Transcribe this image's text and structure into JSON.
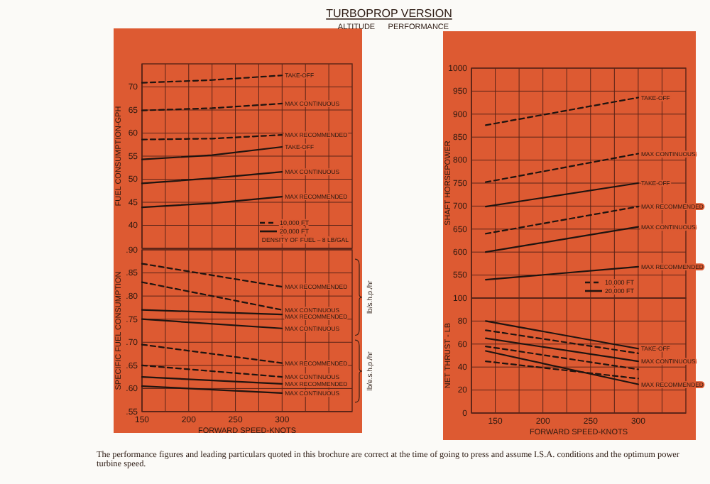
{
  "chart_data": [
    {
      "type": "line",
      "ylabel": "FUEL CONSUMPTION-GPH",
      "xlim": [
        150,
        375
      ],
      "xticks": [
        150,
        {
          "value": 175,
          "label": null
        },
        200,
        {
          "value": 225,
          "label": null
        },
        250,
        {
          "value": 275,
          "label": null
        },
        300,
        {
          "value": 325,
          "label": null
        },
        {
          "value": 350,
          "label": null
        }
      ],
      "ylim": [
        35,
        75
      ],
      "yticks": [
        {
          "value": 35,
          "label": null
        },
        40,
        45,
        50,
        55,
        60,
        65,
        70
      ],
      "grid": true,
      "tick_labels": "y",
      "annotations": [
        "10,000 FT",
        "20,000 FT",
        "DENSITY OF FUEL – 8 LB/GAL"
      ],
      "series": [
        {
          "name": "TAKE-OFF",
          "color": "#1e1410",
          "line_style": "dashed",
          "x": [
            150,
            225,
            300
          ],
          "values": [
            70.9,
            71.5,
            72.5
          ]
        },
        {
          "name": "MAX CONTINUOUS",
          "color": "#1e1410",
          "line_style": "dashed",
          "x": [
            150,
            225,
            300
          ],
          "values": [
            64.9,
            65.4,
            66.4
          ]
        },
        {
          "name": "MAX RECOMMENDED",
          "color": "#1e1410",
          "line_style": "dashed",
          "x": [
            150,
            225,
            300
          ],
          "values": [
            58.6,
            58.8,
            59.6
          ]
        },
        {
          "name": "TAKE-OFF",
          "color": "#1e1410",
          "line_style": "solid",
          "x": [
            150,
            225,
            300
          ],
          "values": [
            54.3,
            55.2,
            57.0
          ]
        },
        {
          "name": "MAX CONTINUOUS",
          "color": "#1e1410",
          "line_style": "solid",
          "x": [
            150,
            225,
            300
          ],
          "values": [
            49.1,
            50.2,
            51.6
          ]
        },
        {
          "name": "MAX RECOMMENDED",
          "color": "#1e1410",
          "line_style": "solid",
          "x": [
            150,
            225,
            300
          ],
          "values": [
            43.9,
            44.8,
            46.2
          ]
        }
      ]
    },
    {
      "type": "line",
      "ylabel": "SPECIFIC FUEL CONSUMPTION",
      "xlabel": "FORWARD SPEED-KNOTS",
      "xlim": [
        150,
        375
      ],
      "xticks": [
        150,
        {
          "value": 175,
          "label": null
        },
        200,
        {
          "value": 225,
          "label": null
        },
        250,
        {
          "value": 275,
          "label": null
        },
        300,
        {
          "value": 325,
          "label": null
        },
        {
          "value": 350,
          "label": null
        }
      ],
      "ylim": [
        0.55,
        0.9
      ],
      "yticks": [
        {
          "value": 0.55,
          "label": ".55"
        },
        {
          "value": 0.6,
          "label": ".60"
        },
        {
          "value": 0.65,
          "label": ".65"
        },
        {
          "value": 0.7,
          "label": ".70"
        },
        {
          "value": 0.75,
          "label": ".75"
        },
        {
          "value": 0.8,
          "label": ".80"
        },
        {
          "value": 0.85,
          "label": ".85"
        },
        {
          "value": 0.9,
          "label": ".90"
        }
      ],
      "grid": true,
      "annotations": [
        "lb/s.h.p./hr",
        "lb/e.s.h.p./hr"
      ],
      "series": [
        {
          "name": "MAX RECOMMENDED",
          "color": "#1e1410",
          "line_style": "dashed",
          "x": [
            150,
            300
          ],
          "values": [
            0.87,
            0.82
          ]
        },
        {
          "name": "MAX CONTINUOUS",
          "color": "#1e1410",
          "line_style": "dashed",
          "x": [
            150,
            300
          ],
          "values": [
            0.83,
            0.77
          ]
        },
        {
          "name": "MAX RECOMMENDED",
          "color": "#1e1410",
          "line_style": "solid",
          "x": [
            150,
            300
          ],
          "values": [
            0.77,
            0.76
          ]
        },
        {
          "name": "MAX CONTINUOUS",
          "color": "#1e1410",
          "line_style": "solid",
          "x": [
            150,
            300
          ],
          "values": [
            0.75,
            0.73
          ]
        },
        {
          "name": "MAX RECOMMENDED",
          "color": "#1e1410",
          "line_style": "dashed",
          "x": [
            150,
            300
          ],
          "values": [
            0.695,
            0.655
          ]
        },
        {
          "name": "MAX CONTINUOUS",
          "color": "#1e1410",
          "line_style": "dashed",
          "x": [
            150,
            300
          ],
          "values": [
            0.65,
            0.625
          ]
        },
        {
          "name": "MAX RECOMMENDED",
          "color": "#1e1410",
          "line_style": "solid",
          "x": [
            150,
            300
          ],
          "values": [
            0.625,
            0.61
          ]
        },
        {
          "name": "MAX CONTINUOUS",
          "color": "#1e1410",
          "line_style": "solid",
          "x": [
            150,
            300
          ],
          "values": [
            0.605,
            0.59
          ]
        }
      ]
    },
    {
      "type": "line",
      "title": "TURBOPROP VERSION",
      "subtitle": "ALTITUDE      PERFORMANCE",
      "ylabel": "SHAFT HORSEPOWER",
      "xlim": [
        125,
        350
      ],
      "xticks": [
        {
          "value": 125,
          "label": null
        },
        150,
        {
          "value": 175,
          "label": null
        },
        200,
        {
          "value": 225,
          "label": null
        },
        250,
        {
          "value": 275,
          "label": null
        },
        300,
        {
          "value": 325,
          "label": null
        }
      ],
      "ylim": [
        500,
        1000
      ],
      "yticks": [
        550,
        600,
        650,
        700,
        750,
        800,
        850,
        900,
        950,
        1000
      ],
      "grid": true,
      "tick_labels": "y",
      "annotations": [
        "10,000 FT",
        "20,000 FT"
      ],
      "series": [
        {
          "name": "TAKE-OFF",
          "color": "#1e1410",
          "line_style": "dashed",
          "x": [
            140,
            300
          ],
          "values": [
            876,
            936
          ]
        },
        {
          "name": "MAX CONTINUOUS",
          "color": "#1e1410",
          "line_style": "dashed",
          "x": [
            140,
            300
          ],
          "values": [
            752,
            814
          ]
        },
        {
          "name": "TAKE-OFF",
          "color": "#1e1410",
          "line_style": "solid",
          "x": [
            140,
            300
          ],
          "values": [
            699,
            750
          ]
        },
        {
          "name": "MAX RECOMMENDED",
          "color": "#1e1410",
          "line_style": "dashed",
          "x": [
            140,
            300
          ],
          "values": [
            640,
            699
          ]
        },
        {
          "name": "MAX CONTINUOUS",
          "color": "#1e1410",
          "line_style": "solid",
          "x": [
            140,
            300
          ],
          "values": [
            600,
            655
          ]
        },
        {
          "name": "MAX RECOMMENDED",
          "color": "#1e1410",
          "line_style": "solid",
          "x": [
            140,
            300
          ],
          "values": [
            540,
            568
          ]
        }
      ]
    },
    {
      "type": "line",
      "ylabel": "NET THRUST - LB",
      "xlabel": "FORWARD SPEED-KNOTS",
      "xlim": [
        125,
        350
      ],
      "xticks": [
        {
          "value": 125,
          "label": null
        },
        150,
        {
          "value": 175,
          "label": null
        },
        200,
        {
          "value": 225,
          "label": null
        },
        250,
        {
          "value": 275,
          "label": null
        },
        300,
        {
          "value": 325,
          "label": null
        }
      ],
      "ylim": [
        0,
        100
      ],
      "yticks": [
        0,
        20,
        40,
        60,
        80,
        100
      ],
      "grid": true,
      "annotations": [
        "The performance figures and leading particulars quoted in this brochure are correct at the time of going to press and assume I.S.A. conditions and the optimum power turbine speed."
      ],
      "series": [
        {
          "name": "TAKE-OFF",
          "color": "#1e1410",
          "line_style": "solid",
          "x": [
            140,
            300
          ],
          "values": [
            80,
            56
          ]
        },
        {
          "color": "#1e1410",
          "line_style": "dashed",
          "x": [
            140,
            300
          ],
          "values": [
            72,
            52
          ]
        },
        {
          "name": "MAX CONTINUOUS",
          "color": "#1e1410",
          "line_style": "solid",
          "x": [
            140,
            300
          ],
          "values": [
            65,
            45
          ]
        },
        {
          "color": "#1e1410",
          "line_style": "dashed",
          "x": [
            140,
            300
          ],
          "values": [
            58,
            38
          ]
        },
        {
          "name": "MAX RECOMMENDED",
          "color": "#1e1410",
          "line_style": "solid",
          "x": [
            140,
            300
          ],
          "values": [
            54,
            25
          ]
        },
        {
          "color": "#1e1410",
          "line_style": "dashed",
          "x": [
            140,
            300
          ],
          "values": [
            45,
            30
          ]
        }
      ]
    }
  ]
}
